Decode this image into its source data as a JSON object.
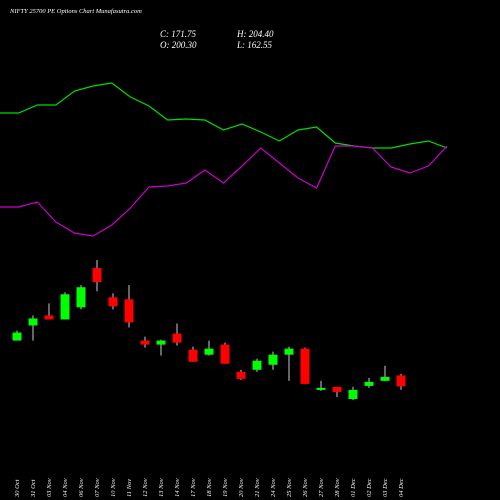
{
  "chart_data": {
    "type": "candlestick",
    "title": "NIFTY 25700 PE Options Chart Munafasutra.com",
    "annotations": [
      "C: 171.75",
      "H: 204.40",
      "O: 200.30",
      "L: 162.55"
    ],
    "x": [
      "30 Oct",
      "31 Oct",
      "03 Nov",
      "04 Nov",
      "06 Nov",
      "07 Nov",
      "10 Nov",
      "11 Nov",
      "12 Nov",
      "13 Nov",
      "14 Nov",
      "17 Nov",
      "18 Nov",
      "19 Nov",
      "20 Nov",
      "21 Nov",
      "24 Nov",
      "25 Nov",
      "26 Nov",
      "27 Nov",
      "28 Nov",
      "01 Dec",
      "02 Dec",
      "03 Dec",
      "04 Dec"
    ],
    "open": [
      290.9,
      330.2,
      356.4,
      345.9,
      377.3,
      479.5,
      403.5,
      398.3,
      290.9,
      280.4,
      309.2,
      267.3,
      254.2,
      280.4,
      209.6,
      214.9,
      228.0,
      254.2,
      269.9,
      162.5,
      170.3,
      138.9,
      173.0,
      186.1,
      200.3
    ],
    "close": [
      311.8,
      348.5,
      345.9,
      411.4,
      429.7,
      442.8,
      379.9,
      338.0,
      280.4,
      290.9,
      285.6,
      235.8,
      269.9,
      230.6,
      191.3,
      238.5,
      254.2,
      269.9,
      178.2,
      167.7,
      157.3,
      162.5,
      183.4,
      196.5,
      171.75
    ],
    "high": [
      317.1,
      356.4,
      387.8,
      416.6,
      435.0,
      500.5,
      414.0,
      435.0,
      301.3,
      293.5,
      335.4,
      275.1,
      290.9,
      285.6,
      214.9,
      243.7,
      262.0,
      275.1,
      272.5,
      186.1,
      170.3,
      170.3,
      193.9,
      225.4,
      204.4
    ],
    "low": [
      290.9,
      290.9,
      345.9,
      345.9,
      372.1,
      419.2,
      372.1,
      324.9,
      272.5,
      251.6,
      277.8,
      235.8,
      251.6,
      230.6,
      188.7,
      209.6,
      214.9,
      186.1,
      178.2,
      159.9,
      144.1,
      136.3,
      167.7,
      186.1,
      162.55
    ],
    "up_color": "#00ff00",
    "down_color": "#ff0000",
    "lines": [
      {
        "color": "#00dd00",
        "values": [
          73.5,
          73.5,
          77.5,
          77.5,
          84.5,
          87,
          88.5,
          81.5,
          77,
          70,
          70.5,
          70,
          65,
          68,
          64,
          59.5,
          65,
          66.5,
          58.5,
          57,
          56,
          56,
          58,
          59.5,
          56
        ]
      },
      {
        "color": "#cc00cc",
        "values": [
          26.5,
          26.5,
          29,
          19,
          13.5,
          12,
          17.5,
          26,
          36.5,
          37,
          38.5,
          45,
          38.5,
          47,
          56,
          48.5,
          41,
          36,
          57,
          57,
          56,
          46.5,
          43.5,
          47,
          57
        ]
      }
    ],
    "line_ylim": [
      0,
      100
    ],
    "ylim": [
      136.3,
      500.5
    ]
  }
}
